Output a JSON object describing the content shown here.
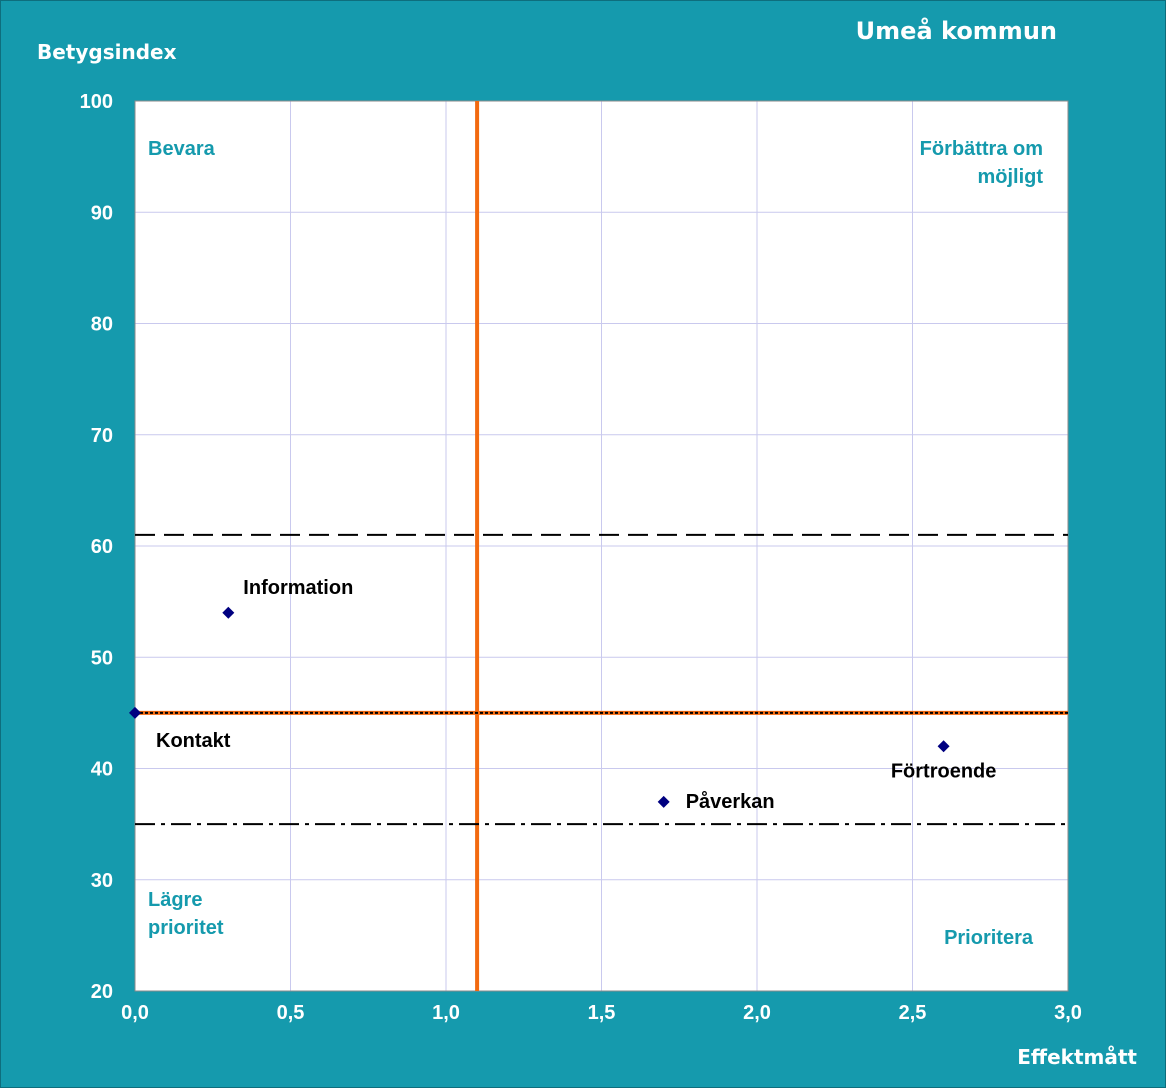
{
  "chart_data": {
    "type": "scatter",
    "title": "Umeå kommun",
    "xlabel": "Effektmått",
    "ylabel": "Betygsindex",
    "xlim": [
      0,
      3
    ],
    "ylim": [
      20,
      100
    ],
    "x_ticks": [
      0,
      0.5,
      1,
      1.5,
      2,
      2.5,
      3
    ],
    "x_tick_labels": [
      "0,0",
      "0,5",
      "1,0",
      "1,5",
      "2,0",
      "2,5",
      "3,0"
    ],
    "y_ticks": [
      20,
      30,
      40,
      50,
      60,
      70,
      80,
      90,
      100
    ],
    "y_tick_labels": [
      "20",
      "30",
      "40",
      "50",
      "60",
      "70",
      "80",
      "90",
      "100"
    ],
    "grid": true,
    "points": [
      {
        "label": "Information",
        "x": 0.3,
        "y": 54
      },
      {
        "label": "Kontakt",
        "x": 0.0,
        "y": 45
      },
      {
        "label": "Påverkan",
        "x": 1.7,
        "y": 37
      },
      {
        "label": "Förtroende",
        "x": 2.6,
        "y": 42
      }
    ],
    "reference_lines": [
      {
        "orientation": "vertical",
        "value": 1.1,
        "style": "solid",
        "color": "#f26a10"
      },
      {
        "orientation": "horizontal",
        "value": 45,
        "style": "solid",
        "color": "#f26a10"
      },
      {
        "orientation": "horizontal",
        "value": 45,
        "style": "dotted",
        "color": "#000000"
      },
      {
        "orientation": "horizontal",
        "value": 61,
        "style": "dashed",
        "color": "#000000"
      },
      {
        "orientation": "horizontal",
        "value": 35,
        "style": "dash-dot",
        "color": "#000000"
      }
    ],
    "quadrant_labels": {
      "top_left": [
        "Bevara"
      ],
      "top_right": [
        "Förbättra om",
        "möjligt"
      ],
      "bottom_left": [
        "Lägre",
        "prioritet"
      ],
      "bottom_right": [
        "Prioritera"
      ]
    },
    "colors": {
      "background": "#159aad",
      "plot_area": "#ffffff",
      "grid": "#c9c9ee",
      "marker": "#000080",
      "quadrant_text": "#159aad",
      "reference_orange": "#f26a10"
    }
  }
}
